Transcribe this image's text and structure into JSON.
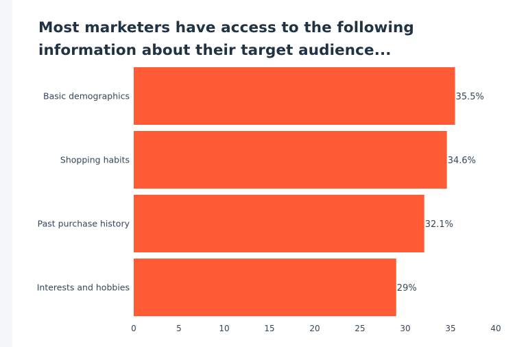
{
  "title": "Most marketers have access to the following information about their target audience...",
  "colors": {
    "bar": "#ff5c35",
    "text": "#33475b",
    "title": "#213343"
  },
  "chart_data": {
    "type": "bar",
    "orientation": "horizontal",
    "title": "Most marketers have access to the following information about their target audience...",
    "categories": [
      "Basic demographics",
      "Shopping habits",
      "Past purchase history",
      "Interests and hobbies"
    ],
    "values": [
      35.5,
      34.6,
      32.1,
      29
    ],
    "value_labels": [
      "35.5%",
      "34.6%",
      "32.1%",
      "29%"
    ],
    "xlim": [
      0,
      40
    ],
    "xticks": [
      0,
      5,
      10,
      15,
      20,
      25,
      30,
      35,
      40
    ],
    "grid": false,
    "legend": "none"
  }
}
